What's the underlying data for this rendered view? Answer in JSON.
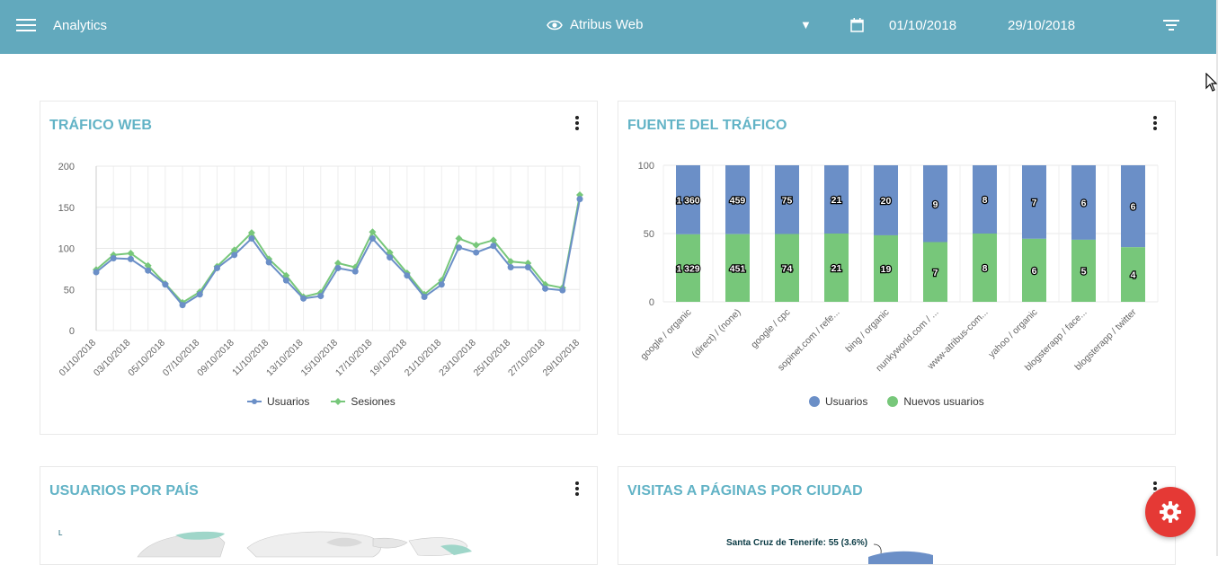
{
  "header": {
    "app_title": "Analytics",
    "site_name": "Atribus Web",
    "date_from": "01/10/2018",
    "date_to": "29/10/2018"
  },
  "cards": {
    "traffic": {
      "title": "TRÁFICO WEB"
    },
    "sources": {
      "title": "FUENTE DEL TRÁFICO"
    },
    "country": {
      "title": "USUARIOS POR PAÍS",
      "map_corner_label": "L"
    },
    "city": {
      "title": "VISITAS A PÁGINAS POR CIUDAD",
      "slice_label": "Santa Cruz de Tenerife: 55 (3.6%)"
    }
  },
  "colors": {
    "header": "#62a9bd",
    "title": "#62b3c6",
    "usuarios": "#6b8fc7",
    "sesiones": "#77c77a",
    "fab": "#e53935"
  },
  "chart_data": [
    {
      "type": "line",
      "x": [
        "01/10/2018",
        "02/10/2018",
        "03/10/2018",
        "04/10/2018",
        "05/10/2018",
        "06/10/2018",
        "07/10/2018",
        "08/10/2018",
        "09/10/2018",
        "10/10/2018",
        "11/10/2018",
        "12/10/2018",
        "13/10/2018",
        "14/10/2018",
        "15/10/2018",
        "16/10/2018",
        "17/10/2018",
        "18/10/2018",
        "19/10/2018",
        "20/10/2018",
        "21/10/2018",
        "22/10/2018",
        "23/10/2018",
        "24/10/2018",
        "25/10/2018",
        "26/10/2018",
        "27/10/2018",
        "28/10/2018",
        "29/10/2018"
      ],
      "x_tick_labels": [
        "01/10/2018",
        "03/10/2018",
        "05/10/2018",
        "07/10/2018",
        "09/10/2018",
        "11/10/2018",
        "13/10/2018",
        "15/10/2018",
        "17/10/2018",
        "19/10/2018",
        "21/10/2018",
        "23/10/2018",
        "25/10/2018",
        "27/10/2018",
        "29/10/2018"
      ],
      "series": [
        {
          "name": "Usuarios",
          "values": [
            71,
            88,
            87,
            73,
            56,
            31,
            44,
            76,
            92,
            112,
            83,
            61,
            39,
            42,
            76,
            72,
            112,
            89,
            67,
            41,
            56,
            101,
            95,
            103,
            77,
            77,
            51,
            49,
            160
          ]
        },
        {
          "name": "Sesiones",
          "values": [
            74,
            92,
            94,
            79,
            57,
            34,
            47,
            78,
            98,
            119,
            87,
            67,
            41,
            46,
            82,
            77,
            120,
            95,
            70,
            44,
            61,
            112,
            104,
            110,
            84,
            82,
            56,
            52,
            165
          ]
        }
      ],
      "ylim": [
        0,
        200
      ],
      "yticks": [
        0,
        50,
        100,
        150,
        200
      ],
      "grid": true,
      "legend": "bottom"
    },
    {
      "type": "bar",
      "stacked": true,
      "normalized": true,
      "categories": [
        "google / organic",
        "(direct) / (none)",
        "google / cpc",
        "sopinet.com / refe...",
        "bing / organic",
        "nunkyworld.com / ...",
        "www-atribus-com...",
        "yahoo / organic",
        "blogsterapp / face...",
        "blogsterapp / twitter"
      ],
      "series": [
        {
          "name": "Usuarios",
          "values": [
            1360,
            459,
            75,
            21,
            20,
            9,
            8,
            7,
            6,
            6
          ],
          "labels": [
            "1 360",
            "459",
            "75",
            "21",
            "20",
            "9",
            "8",
            "7",
            "6",
            "6"
          ]
        },
        {
          "name": "Nuevos usuarios",
          "values": [
            1329,
            451,
            74,
            21,
            19,
            7,
            8,
            6,
            5,
            4
          ],
          "labels": [
            "1 329",
            "451",
            "74",
            "21",
            "19",
            "7",
            "8",
            "6",
            "5",
            "4"
          ]
        }
      ],
      "ylim": [
        0,
        100
      ],
      "yticks": [
        0,
        50,
        100
      ],
      "grid": true,
      "legend": "bottom"
    }
  ]
}
